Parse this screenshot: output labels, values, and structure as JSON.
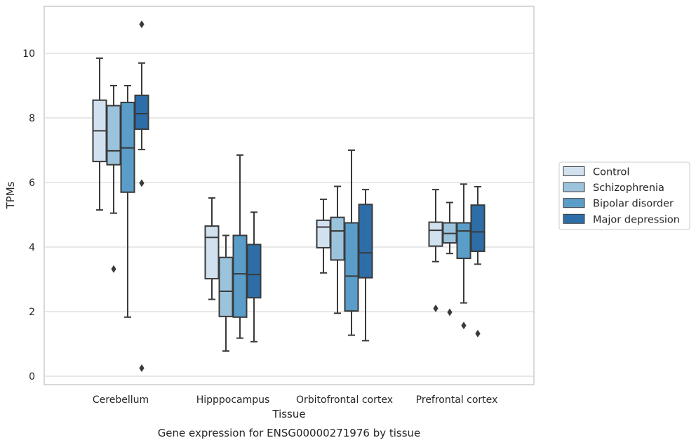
{
  "chart_data": {
    "type": "box",
    "caption": "Gene expression for ENSG00000271976 by tissue",
    "xlabel": "Tissue",
    "ylabel": "TPMs",
    "ylim": [
      -0.2,
      11.5
    ],
    "yticks": [
      0,
      2,
      4,
      6,
      8,
      10
    ],
    "grid": "horizontal",
    "legend_position": "right",
    "categories": [
      "Cerebellum",
      "Hipppocampus",
      "Orbitofrontal cortex",
      "Prefrontal cortex"
    ],
    "series": [
      {
        "name": "Control",
        "color": "#d1e1f0",
        "boxes": [
          {
            "whislo": 5.15,
            "q1": 6.65,
            "med": 7.6,
            "q3": 8.55,
            "whishi": 9.85,
            "fliers": []
          },
          {
            "whislo": 2.38,
            "q1": 3.02,
            "med": 4.3,
            "q3": 4.65,
            "whishi": 5.52,
            "fliers": []
          },
          {
            "whislo": 3.2,
            "q1": 3.98,
            "med": 4.62,
            "q3": 4.83,
            "whishi": 5.48,
            "fliers": []
          },
          {
            "whislo": 3.55,
            "q1": 4.03,
            "med": 4.52,
            "q3": 4.77,
            "whishi": 5.78,
            "fliers": [
              2.1
            ]
          }
        ]
      },
      {
        "name": "Schizophrenia",
        "color": "#9cc3dc",
        "boxes": [
          {
            "whislo": 5.05,
            "q1": 6.55,
            "med": 6.98,
            "q3": 8.38,
            "whishi": 9.0,
            "fliers": [
              3.32
            ]
          },
          {
            "whislo": 0.78,
            "q1": 1.85,
            "med": 2.63,
            "q3": 3.68,
            "whishi": 4.36,
            "fliers": []
          },
          {
            "whislo": 1.95,
            "q1": 3.6,
            "med": 4.5,
            "q3": 4.92,
            "whishi": 5.88,
            "fliers": []
          },
          {
            "whislo": 3.8,
            "q1": 4.13,
            "med": 4.42,
            "q3": 4.75,
            "whishi": 5.38,
            "fliers": [
              1.98
            ]
          }
        ]
      },
      {
        "name": "Bipolar disorder",
        "color": "#5a9dc8",
        "boxes": [
          {
            "whislo": 1.83,
            "q1": 5.7,
            "med": 7.07,
            "q3": 8.48,
            "whishi": 9.0,
            "fliers": []
          },
          {
            "whislo": 1.18,
            "q1": 1.83,
            "med": 3.17,
            "q3": 4.36,
            "whishi": 6.85,
            "fliers": []
          },
          {
            "whislo": 1.27,
            "q1": 2.02,
            "med": 3.1,
            "q3": 4.75,
            "whishi": 7.0,
            "fliers": []
          },
          {
            "whislo": 2.27,
            "q1": 3.65,
            "med": 4.5,
            "q3": 4.75,
            "whishi": 5.95,
            "fliers": [
              1.57
            ]
          }
        ]
      },
      {
        "name": "Major depression",
        "color": "#2d6ea8",
        "boxes": [
          {
            "whislo": 7.02,
            "q1": 7.65,
            "med": 8.13,
            "q3": 8.7,
            "whishi": 9.7,
            "fliers": [
              10.9,
              5.98,
              0.25
            ]
          },
          {
            "whislo": 1.07,
            "q1": 2.43,
            "med": 3.15,
            "q3": 4.08,
            "whishi": 5.08,
            "fliers": []
          },
          {
            "whislo": 1.1,
            "q1": 3.05,
            "med": 3.82,
            "q3": 5.32,
            "whishi": 5.78,
            "fliers": []
          },
          {
            "whislo": 3.47,
            "q1": 3.87,
            "med": 4.47,
            "q3": 5.3,
            "whishi": 5.87,
            "fliers": [
              1.32
            ]
          }
        ]
      }
    ]
  }
}
